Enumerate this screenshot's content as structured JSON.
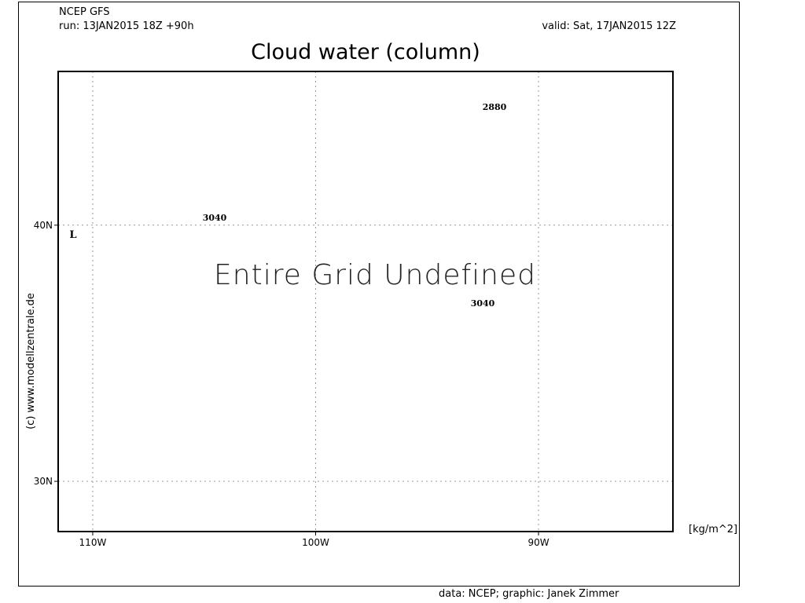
{
  "header": {
    "model": "NCEP GFS",
    "run": "run: 13JAN2015 18Z +90h",
    "valid": "valid: Sat, 17JAN2015 12Z",
    "title": "Cloud water (column)"
  },
  "map": {
    "xlim": [
      -111.55,
      -83.97
    ],
    "ylim": [
      28.04,
      46.0
    ],
    "xticks": [
      {
        "value": -110,
        "label": "110W"
      },
      {
        "value": -100,
        "label": "100W"
      },
      {
        "value": -90,
        "label": "90W"
      }
    ],
    "yticks": [
      {
        "value": 30,
        "label": "30N"
      },
      {
        "value": 40,
        "label": "40N"
      }
    ],
    "grid": true,
    "message": "Entire Grid Undefined",
    "contour_labels": [
      "2880",
      "3040",
      "3040"
    ],
    "low_marker": "L",
    "unit": "[kg/m^2]"
  },
  "credit": "(c) www.modellzentrale.de",
  "footer": "data: NCEP; graphic: Janek Zimmer"
}
